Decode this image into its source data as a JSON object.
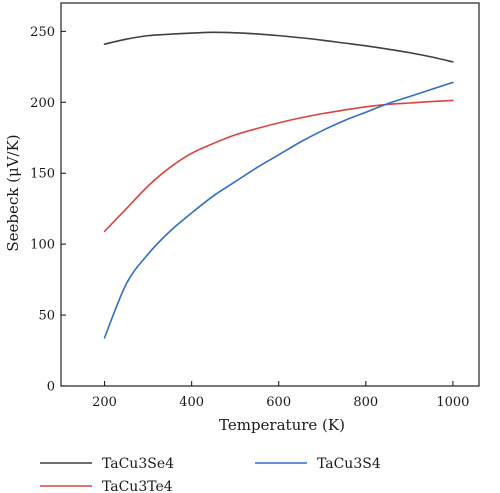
{
  "chart_data": {
    "type": "line",
    "title": "",
    "xlabel": "Temperature (K)",
    "ylabel": "Seebeck (μV/K)",
    "xlim": [
      100,
      1060
    ],
    "ylim": [
      0,
      270
    ],
    "xticks": [
      200,
      400,
      600,
      800,
      1000
    ],
    "yticks": [
      0,
      50,
      100,
      150,
      200,
      250
    ],
    "grid": false,
    "legend_position": "bottom",
    "series": [
      {
        "name": "TaCu3Se4",
        "color": "#404040",
        "x": [
          200,
          250,
          300,
          350,
          400,
          450,
          500,
          550,
          600,
          650,
          700,
          750,
          800,
          850,
          900,
          950,
          1000
        ],
        "y": [
          241,
          244.5,
          247,
          248,
          248.8,
          249.3,
          249,
          248.2,
          247,
          245.5,
          243.8,
          241.8,
          239.8,
          237.5,
          235,
          232,
          228.5
        ]
      },
      {
        "name": "TaCu3Te4",
        "color": "#d9453f",
        "x": [
          200,
          250,
          300,
          350,
          400,
          450,
          500,
          550,
          600,
          650,
          700,
          750,
          800,
          850,
          900,
          950,
          1000
        ],
        "y": [
          109,
          125,
          141,
          154,
          164,
          171,
          177,
          181.5,
          185.5,
          189,
          192,
          194.5,
          196.8,
          198.5,
          199.5,
          200.5,
          201.3
        ]
      },
      {
        "name": "TaCu3S4",
        "color": "#2f6fc4",
        "x": [
          200,
          250,
          300,
          350,
          400,
          450,
          500,
          550,
          600,
          650,
          700,
          750,
          800,
          850,
          900,
          950,
          1000
        ],
        "y": [
          34,
          72,
          93,
          109,
          122,
          134,
          144,
          154,
          163,
          172,
          180,
          187,
          193,
          199,
          204,
          209,
          214
        ]
      }
    ]
  }
}
